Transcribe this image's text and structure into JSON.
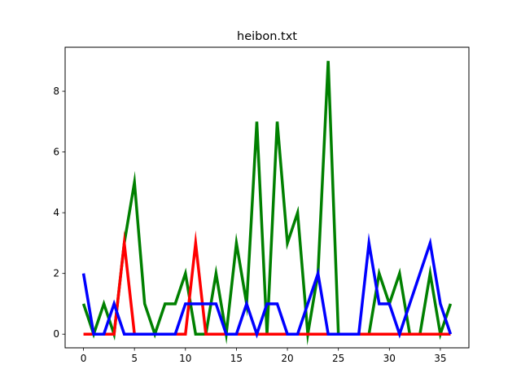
{
  "chart_data": {
    "type": "line",
    "title": "heibon.txt",
    "xlabel": "",
    "ylabel": "",
    "xlim": [
      -1.8,
      37.8
    ],
    "ylim": [
      -0.45,
      9.45
    ],
    "xticks": [
      0,
      5,
      10,
      15,
      20,
      25,
      30,
      35
    ],
    "yticks": [
      0,
      2,
      4,
      6,
      8
    ],
    "grid": false,
    "x": [
      0,
      1,
      2,
      3,
      4,
      5,
      6,
      7,
      8,
      9,
      10,
      11,
      12,
      13,
      14,
      15,
      16,
      17,
      18,
      19,
      20,
      21,
      22,
      23,
      24,
      25,
      26,
      27,
      28,
      29,
      30,
      31,
      32,
      33,
      34,
      35,
      36
    ],
    "series": [
      {
        "color": "#008000",
        "values": [
          1,
          0,
          1,
          0,
          3,
          5,
          1,
          0,
          1,
          1,
          2,
          0,
          0,
          2,
          0,
          3,
          1,
          7,
          0,
          7,
          3,
          4,
          0,
          2,
          9,
          0,
          0,
          0,
          0,
          2,
          1,
          2,
          0,
          0,
          2,
          0,
          1
        ]
      },
      {
        "color": "#ff0000",
        "values": [
          0,
          0,
          0,
          0,
          3,
          0,
          0,
          0,
          0,
          0,
          0,
          3,
          0,
          0,
          0,
          0,
          0,
          0,
          0,
          0,
          0,
          0,
          0,
          0,
          0,
          0,
          0,
          0,
          0,
          0,
          0,
          0,
          0,
          0,
          0,
          0,
          0
        ]
      },
      {
        "color": "#0000ff",
        "values": [
          2,
          0,
          0,
          1,
          0,
          0,
          0,
          0,
          0,
          0,
          1,
          1,
          1,
          1,
          0,
          0,
          1,
          0,
          1,
          1,
          0,
          0,
          1,
          2,
          0,
          0,
          0,
          0,
          3,
          1,
          1,
          0,
          1,
          2,
          3,
          1,
          0
        ]
      }
    ]
  }
}
